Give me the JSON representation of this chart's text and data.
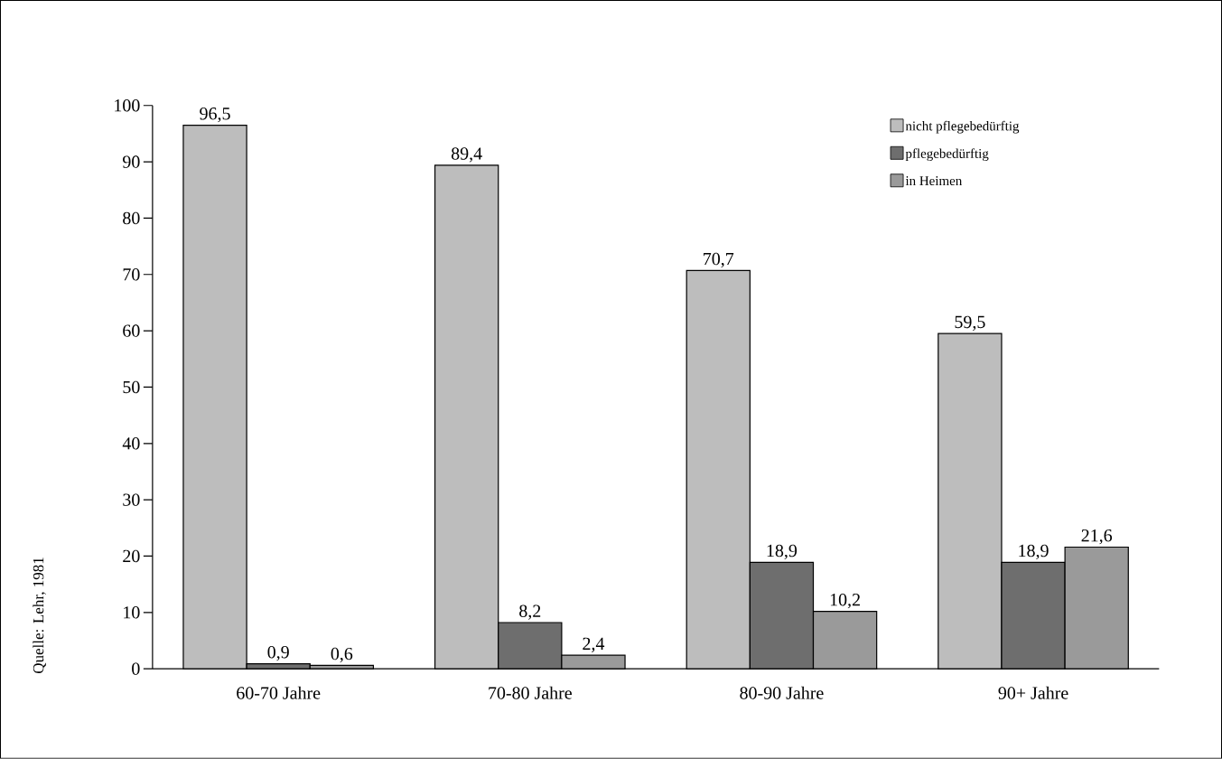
{
  "chart_data": {
    "type": "bar",
    "categories": [
      "60-70 Jahre",
      "70-80 Jahre",
      "80-90 Jahre",
      "90+ Jahre"
    ],
    "series": [
      {
        "name": "nicht pflegebedürftig",
        "color": "#bdbdbd",
        "values": [
          96.5,
          89.4,
          70.7,
          59.5
        ],
        "value_labels": [
          "96,5",
          "89,4",
          "70,7",
          "59,5"
        ]
      },
      {
        "name": "pflegebedürftig",
        "color": "#6e6e6e",
        "values": [
          0.9,
          8.2,
          18.9,
          18.9
        ],
        "value_labels": [
          "0,9",
          "8,2",
          "18,9",
          "18,9"
        ]
      },
      {
        "name": "in Heimen",
        "color": "#9a9a9a",
        "values": [
          0.6,
          2.4,
          10.2,
          21.6
        ],
        "value_labels": [
          "0,6",
          "2,4",
          "10,2",
          "21,6"
        ]
      }
    ],
    "ylim": [
      0,
      100
    ],
    "yticks": [
      0,
      10,
      20,
      30,
      40,
      50,
      60,
      70,
      80,
      90,
      100
    ],
    "grid": false,
    "legend": "top right",
    "annotations": [
      "Quelle: Lehr, 1981"
    ]
  }
}
